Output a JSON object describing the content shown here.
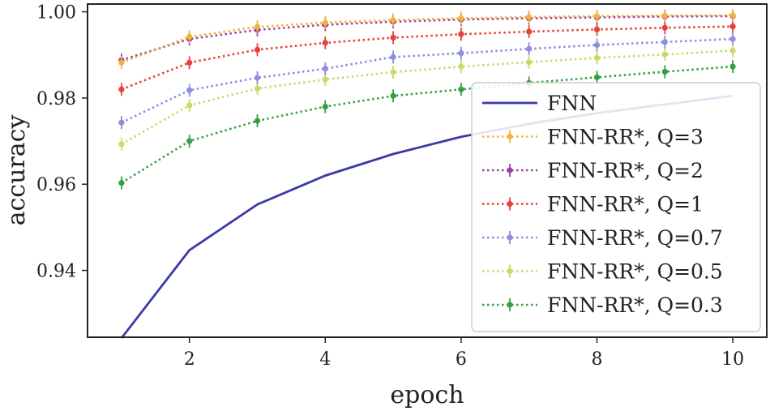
{
  "chart_data": {
    "type": "line",
    "xlabel": "epoch",
    "ylabel": "accuracy",
    "xlim": [
      0.5,
      10.5
    ],
    "ylim": [
      0.9245,
      1.0018
    ],
    "xticks": [
      2,
      4,
      6,
      8,
      10
    ],
    "yticks": [
      0.94,
      0.96,
      0.98,
      1.0
    ],
    "ytick_labels": [
      "0.94",
      "0.96",
      "0.98",
      "1.00"
    ],
    "grid": false,
    "legend_position": "lower-right",
    "x": [
      1,
      2,
      3,
      4,
      5,
      6,
      7,
      8,
      9,
      10
    ],
    "series": [
      {
        "name": "FNN",
        "color": "#3b3ba8",
        "style": "solid",
        "markers": false,
        "values": [
          0.9243,
          0.9447,
          0.9553,
          0.962,
          0.967,
          0.971,
          0.974,
          0.9765,
          0.9785,
          0.9805
        ]
      },
      {
        "name": "FNN-RR*, Q=3",
        "color": "#f2b33a",
        "style": "dotted",
        "markers": true,
        "values": [
          0.9882,
          0.9942,
          0.9965,
          0.9975,
          0.9981,
          0.9985,
          0.9988,
          0.999,
          0.9991,
          0.9992
        ]
      },
      {
        "name": "FNN-RR*, Q=2",
        "color": "#9b3fa6",
        "style": "dotted",
        "markers": true,
        "values": [
          0.9888,
          0.9937,
          0.9958,
          0.997,
          0.9977,
          0.9982,
          0.9985,
          0.9987,
          0.9989,
          0.999
        ]
      },
      {
        "name": "FNN-RR*, Q=1",
        "color": "#e8403a",
        "style": "dotted",
        "markers": true,
        "values": [
          0.982,
          0.9882,
          0.9912,
          0.9928,
          0.994,
          0.9948,
          0.9954,
          0.9959,
          0.9963,
          0.9966
        ]
      },
      {
        "name": "FNN-RR*, Q=0.7",
        "color": "#8c8ee0",
        "style": "dotted",
        "markers": true,
        "values": [
          0.9743,
          0.9818,
          0.9847,
          0.9868,
          0.9895,
          0.9904,
          0.9914,
          0.9923,
          0.993,
          0.9937
        ]
      },
      {
        "name": "FNN-RR*, Q=0.5",
        "color": "#c8db6a",
        "style": "dotted",
        "markers": true,
        "values": [
          0.9693,
          0.9783,
          0.9822,
          0.9843,
          0.986,
          0.9873,
          0.9883,
          0.9893,
          0.9901,
          0.991
        ]
      },
      {
        "name": "FNN-RR*, Q=0.3",
        "color": "#35a043",
        "style": "dotted",
        "markers": true,
        "values": [
          0.9603,
          0.97,
          0.9747,
          0.978,
          0.9805,
          0.982,
          0.9835,
          0.9848,
          0.9861,
          0.9873
        ]
      }
    ]
  }
}
